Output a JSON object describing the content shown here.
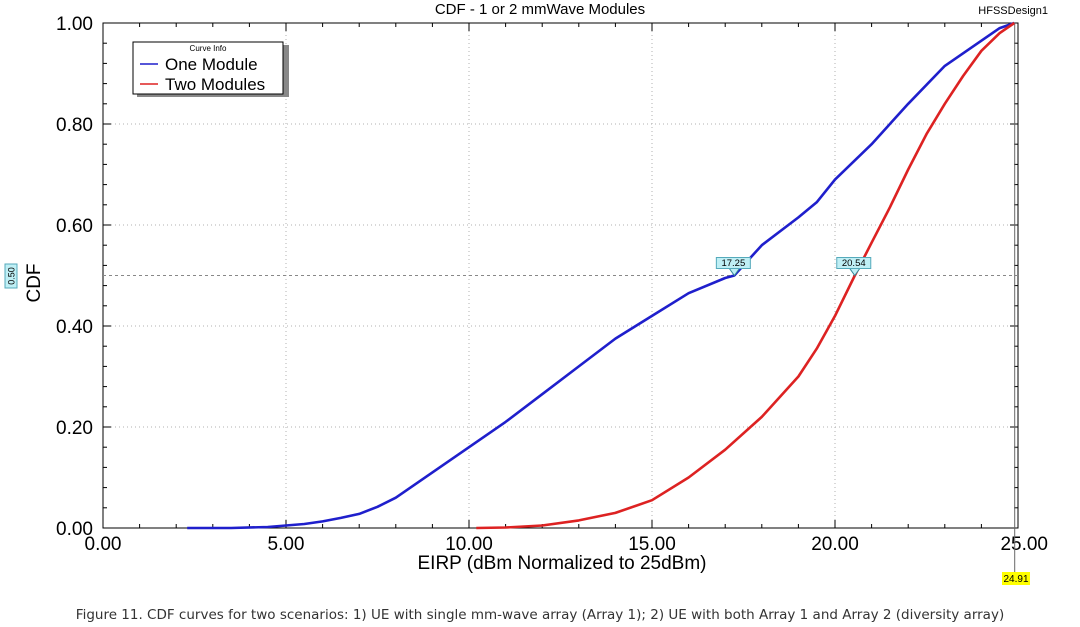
{
  "chart_data": {
    "type": "line",
    "title": "CDF - 1 or 2 mmWave Modules",
    "design_name": "HFSSDesign1",
    "xlabel": "EIRP (dBm Normalized to 25dBm)",
    "ylabel": "CDF",
    "xlim": [
      0,
      25
    ],
    "ylim": [
      0,
      1
    ],
    "x_ticks": [
      "0.00",
      "5.00",
      "10.00",
      "15.00",
      "20.00",
      "25.00"
    ],
    "y_ticks": [
      "0.00",
      "0.20",
      "0.40",
      "0.60",
      "0.80",
      "1.00"
    ],
    "grid": "major dotted gray",
    "legend": {
      "title": "Curve Info",
      "placement": "top-left"
    },
    "series": [
      {
        "name": "One Module",
        "color": "#1f1fcc",
        "x": [
          2.3,
          3.5,
          4.5,
          5.0,
          5.5,
          6.0,
          6.5,
          7.0,
          7.5,
          8.0,
          8.5,
          9.0,
          9.5,
          10.0,
          11.0,
          12.0,
          13.0,
          14.0,
          15.0,
          16.0,
          17.0,
          17.25,
          18.0,
          19.0,
          19.5,
          20.0,
          21.0,
          22.0,
          23.0,
          24.0,
          24.5,
          24.9
        ],
        "values": [
          0.0,
          0.0,
          0.002,
          0.005,
          0.008,
          0.013,
          0.02,
          0.028,
          0.042,
          0.06,
          0.085,
          0.11,
          0.135,
          0.16,
          0.21,
          0.265,
          0.32,
          0.375,
          0.42,
          0.465,
          0.495,
          0.5,
          0.56,
          0.615,
          0.645,
          0.69,
          0.76,
          0.84,
          0.915,
          0.965,
          0.99,
          1.0
        ]
      },
      {
        "name": "Two Modules",
        "color": "#dd2222",
        "x": [
          10.2,
          11.0,
          12.0,
          13.0,
          14.0,
          15.0,
          16.0,
          17.0,
          18.0,
          19.0,
          19.5,
          20.0,
          20.54,
          21.0,
          21.5,
          22.0,
          22.5,
          23.0,
          23.5,
          24.0,
          24.5,
          24.9
        ],
        "values": [
          0.0,
          0.001,
          0.005,
          0.015,
          0.03,
          0.055,
          0.1,
          0.155,
          0.22,
          0.3,
          0.355,
          0.42,
          0.5,
          0.565,
          0.635,
          0.71,
          0.78,
          0.84,
          0.895,
          0.945,
          0.98,
          1.0
        ]
      }
    ],
    "markers": {
      "y_line_value": 0.5,
      "y_line_label": "0.50",
      "x_marker_label": "24.91",
      "point_labels": [
        {
          "series": "One Module",
          "x": 17.25,
          "y": 0.5,
          "label": "17.25"
        },
        {
          "series": "Two Modules",
          "x": 20.54,
          "y": 0.5,
          "label": "20.54"
        }
      ]
    }
  },
  "caption": "Figure 11. CDF curves for two scenarios: 1) UE with single mm-wave array (Array 1); 2) UE with both Array 1 and Array 2 (diversity array)"
}
